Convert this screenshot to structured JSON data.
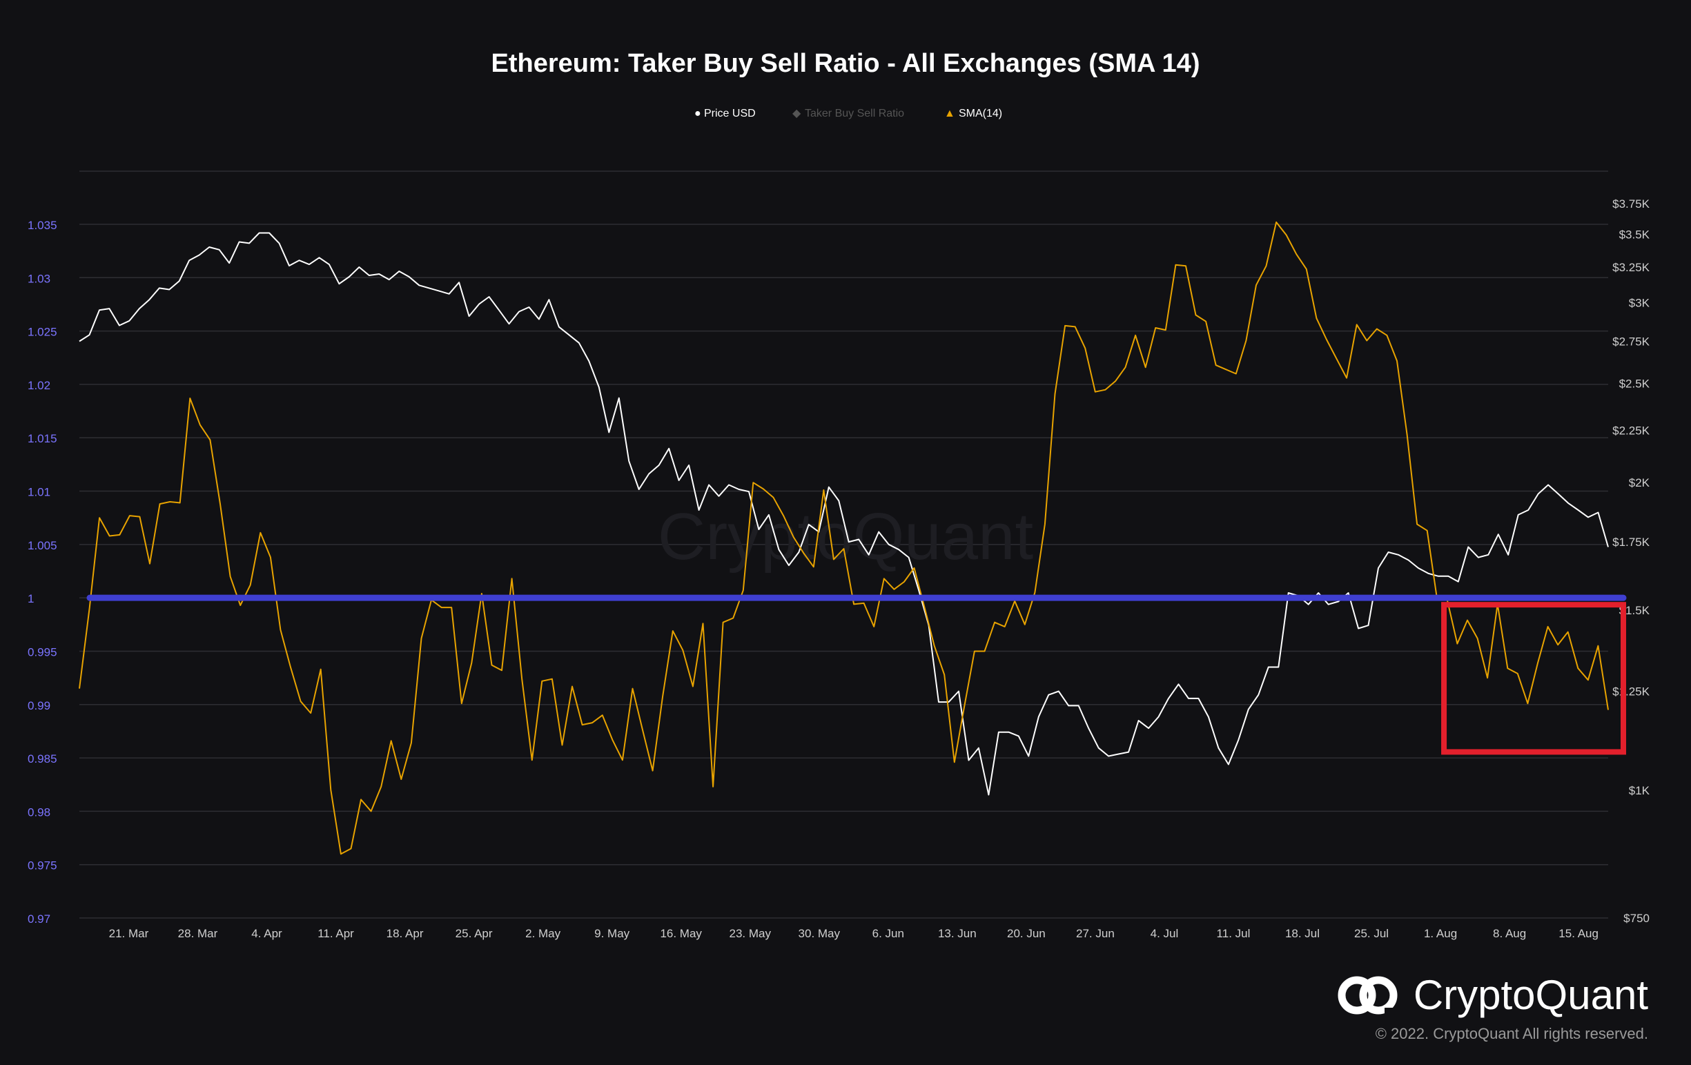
{
  "chart_data": {
    "type": "line",
    "title": "Ethereum: Taker Buy Sell Ratio - All Exchanges (SMA 14)",
    "legend": [
      {
        "name": "Price USD",
        "marker": "●",
        "color": "#ffffff",
        "active": true
      },
      {
        "name": "Taker Buy Sell Ratio",
        "marker": "◆",
        "color": "#555555",
        "active": false
      },
      {
        "name": "SMA(14)",
        "marker": "▲",
        "color": "#e8a300",
        "active": true
      }
    ],
    "legend_position": "top-center",
    "grid": true,
    "x_axis": {
      "type": "date",
      "start": "2022-03-16",
      "end": "2022-08-18",
      "ticks": [
        "21. Mar",
        "28. Mar",
        "4. Apr",
        "11. Apr",
        "18. Apr",
        "25. Apr",
        "2. May",
        "9. May",
        "16. May",
        "23. May",
        "30. May",
        "6. Jun",
        "13. Jun",
        "20. Jun",
        "27. Jun",
        "4. Jul",
        "11. Jul",
        "18. Jul",
        "25. Jul",
        "1. Aug",
        "8. Aug",
        "15. Aug"
      ],
      "tick_dates": [
        "2022-03-21",
        "2022-03-28",
        "2022-04-04",
        "2022-04-11",
        "2022-04-18",
        "2022-04-25",
        "2022-05-02",
        "2022-05-09",
        "2022-05-16",
        "2022-05-23",
        "2022-05-30",
        "2022-06-06",
        "2022-06-13",
        "2022-06-20",
        "2022-06-27",
        "2022-07-04",
        "2022-07-11",
        "2022-07-18",
        "2022-07-25",
        "2022-08-01",
        "2022-08-08",
        "2022-08-15"
      ]
    },
    "y_left": {
      "range": [
        0.97,
        1.04
      ],
      "ticks": [
        "1.035",
        "1.03",
        "1.025",
        "1.02",
        "1.015",
        "1.01",
        "1.005",
        "1",
        "0.995",
        "0.99",
        "0.985",
        "0.98",
        "0.975",
        "0.97"
      ],
      "tick_values": [
        1.035,
        1.03,
        1.025,
        1.02,
        1.015,
        1.01,
        1.005,
        1,
        0.995,
        0.99,
        0.985,
        0.98,
        0.975,
        0.97
      ],
      "color": "#7b74ff"
    },
    "y_right": {
      "scale": "log",
      "range": [
        750,
        4000
      ],
      "ticks": [
        "$3.75K",
        "$3.5K",
        "$3.25K",
        "$3K",
        "$2.75K",
        "$2.5K",
        "$2.25K",
        "$2K",
        "$1.75K",
        "$1.5K",
        "$1.25K",
        "$1K",
        "$750"
      ],
      "tick_values": [
        3750,
        3500,
        3250,
        3000,
        2750,
        2500,
        2250,
        2000,
        1750,
        1500,
        1250,
        1000,
        750
      ],
      "color": "#cfcfcf"
    },
    "series": [
      {
        "name": "Price USD",
        "axis": "right",
        "color": "#ffffff",
        "values": [
          2750,
          2790,
          2950,
          2960,
          2850,
          2880,
          2960,
          3020,
          3100,
          3090,
          3150,
          3300,
          3340,
          3400,
          3380,
          3280,
          3440,
          3430,
          3510,
          3510,
          3430,
          3260,
          3300,
          3270,
          3320,
          3270,
          3130,
          3180,
          3250,
          3190,
          3200,
          3160,
          3220,
          3180,
          3120,
          3100,
          3080,
          3060,
          3140,
          2910,
          2990,
          3040,
          2950,
          2860,
          2940,
          2970,
          2890,
          3020,
          2840,
          2790,
          2740,
          2630,
          2480,
          2240,
          2420,
          2100,
          1970,
          2040,
          2080,
          2160,
          2010,
          2080,
          1880,
          1990,
          1940,
          1990,
          1970,
          1960,
          1800,
          1860,
          1720,
          1660,
          1710,
          1820,
          1790,
          1980,
          1920,
          1750,
          1760,
          1700,
          1790,
          1740,
          1720,
          1690,
          1570,
          1450,
          1220,
          1220,
          1250,
          1070,
          1100,
          990,
          1140,
          1140,
          1130,
          1080,
          1180,
          1240,
          1250,
          1210,
          1210,
          1150,
          1100,
          1080,
          1085,
          1090,
          1170,
          1150,
          1180,
          1230,
          1270,
          1230,
          1230,
          1180,
          1100,
          1060,
          1120,
          1200,
          1240,
          1320,
          1320,
          1560,
          1550,
          1520,
          1560,
          1520,
          1530,
          1560,
          1440,
          1450,
          1650,
          1710,
          1700,
          1680,
          1650,
          1630,
          1620,
          1620,
          1600,
          1730,
          1690,
          1700,
          1780,
          1700,
          1860,
          1880,
          1950,
          1990,
          1950,
          1910,
          1880,
          1850,
          1870,
          1730
        ]
      },
      {
        "name": "SMA(14)",
        "axis": "left",
        "color": "#e8a300",
        "values": [
          0.9915,
          0.999,
          1.0075,
          1.0058,
          1.0059,
          1.0077,
          1.0076,
          1.0032,
          1.0088,
          1.009,
          1.0089,
          1.0187,
          1.0162,
          1.0148,
          1.0088,
          1.002,
          0.9993,
          1.0012,
          1.0061,
          1.0038,
          0.997,
          0.9935,
          0.9903,
          0.9892,
          0.9933,
          0.982,
          0.976,
          0.9765,
          0.9811,
          0.98,
          0.9823,
          0.9866,
          0.983,
          0.9864,
          0.9962,
          0.9998,
          0.9991,
          0.9991,
          0.9901,
          0.9939,
          1.0004,
          0.9937,
          0.9932,
          1.0018,
          0.9924,
          0.9848,
          0.9922,
          0.9924,
          0.9862,
          0.9917,
          0.9881,
          0.9883,
          0.989,
          0.9867,
          0.9848,
          0.9915,
          0.9876,
          0.9838,
          0.9908,
          0.9969,
          0.9951,
          0.9917,
          0.9976,
          0.9823,
          0.9977,
          0.9981,
          1.0007,
          1.0108,
          1.0102,
          1.0094,
          1.0077,
          1.0057,
          1.0042,
          1.0029,
          1.0101,
          1.0036,
          1.0046,
          0.9994,
          0.9995,
          0.9973,
          1.0018,
          1.0008,
          1.0015,
          1.0028,
          0.9992,
          0.9955,
          0.9928,
          0.9846,
          0.9899,
          0.995,
          0.995,
          0.9977,
          0.9973,
          0.9997,
          0.9975,
          1.0005,
          1.0069,
          1.0191,
          1.0255,
          1.0254,
          1.0234,
          1.0193,
          1.0195,
          1.0203,
          1.0216,
          1.0246,
          1.0216,
          1.0253,
          1.0251,
          1.0312,
          1.0311,
          1.0265,
          1.0259,
          1.0218,
          1.0214,
          1.021,
          1.0241,
          1.0293,
          1.0311,
          1.0352,
          1.034,
          1.0322,
          1.0308,
          1.0262,
          1.0242,
          1.0224,
          1.0206,
          1.0256,
          1.0241,
          1.0252,
          1.0246,
          1.0222,
          1.0153,
          1.0069,
          1.0063,
          0.9998,
          0.9998,
          0.9957,
          0.9979,
          0.9962,
          0.9925,
          0.9994,
          0.9934,
          0.9929,
          0.9901,
          0.9939,
          0.9973,
          0.9956,
          0.9968,
          0.9934,
          0.9923,
          0.9955,
          0.9895
        ]
      }
    ],
    "annotations": [
      {
        "type": "horizontal-line",
        "axis": "left",
        "value": 1.0,
        "color": "#3f3fd0"
      },
      {
        "type": "rectangle",
        "color": "#e3202c",
        "x_start": "2022-08-01",
        "x_end": "2022-08-18",
        "y_top": 1.0,
        "y_bottom": 0.9875
      }
    ]
  },
  "watermark": "CryptoQuant",
  "brand": {
    "name": "CryptoQuant",
    "copyright": "© 2022. CryptoQuant All rights reserved."
  },
  "colors": {
    "background": "#111114",
    "grid": "#2e2e33",
    "price": "#ffffff",
    "sma": "#e8a300",
    "baseline": "#3f3fd0",
    "highlight": "#e3202c"
  }
}
